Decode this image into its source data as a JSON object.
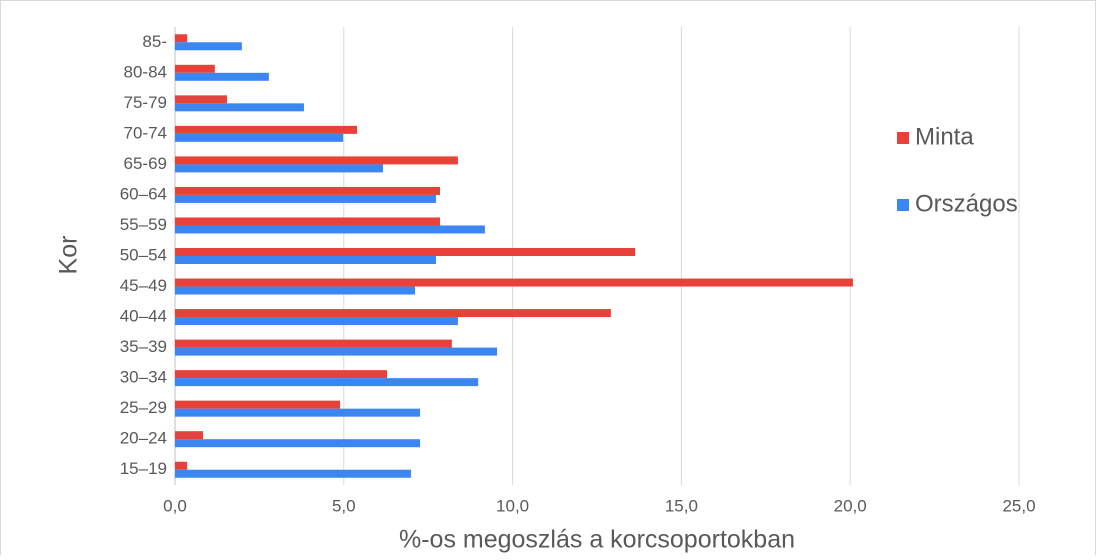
{
  "chart_data": {
    "type": "hbar",
    "xlabel": "%-os megoszlás a korcsoportokban",
    "ylabel": "Kor",
    "categories": [
      "85-",
      "80-84",
      "75-79",
      "70-74",
      "65-69",
      "60–64",
      "55–59",
      "50–54",
      "45–49",
      "40–44",
      "35–39",
      "30–34",
      "25–29",
      "20–24",
      "15–19"
    ],
    "series": [
      {
        "name": "Minta",
        "color": "#e8413a",
        "values": [
          0.36,
          1.18,
          1.54,
          5.39,
          8.38,
          7.85,
          7.85,
          13.63,
          20.08,
          12.91,
          8.2,
          6.28,
          4.89,
          0.83,
          0.36
        ]
      },
      {
        "name": "Országos",
        "color": "#3b86f0",
        "values": [
          1.98,
          2.78,
          3.82,
          4.98,
          6.16,
          7.73,
          9.18,
          7.73,
          7.11,
          8.38,
          9.54,
          8.98,
          7.26,
          7.26,
          6.99
        ]
      }
    ],
    "xlim": [
      0,
      25
    ],
    "xticks": [
      {
        "value": 0,
        "label": "0,0"
      },
      {
        "value": 5,
        "label": "5,0"
      },
      {
        "value": 10,
        "label": "10,0"
      },
      {
        "value": 15,
        "label": "15,0"
      },
      {
        "value": 20,
        "label": "20,0"
      },
      {
        "value": 25,
        "label": "25,0"
      }
    ],
    "grid": true,
    "legend": "right"
  }
}
